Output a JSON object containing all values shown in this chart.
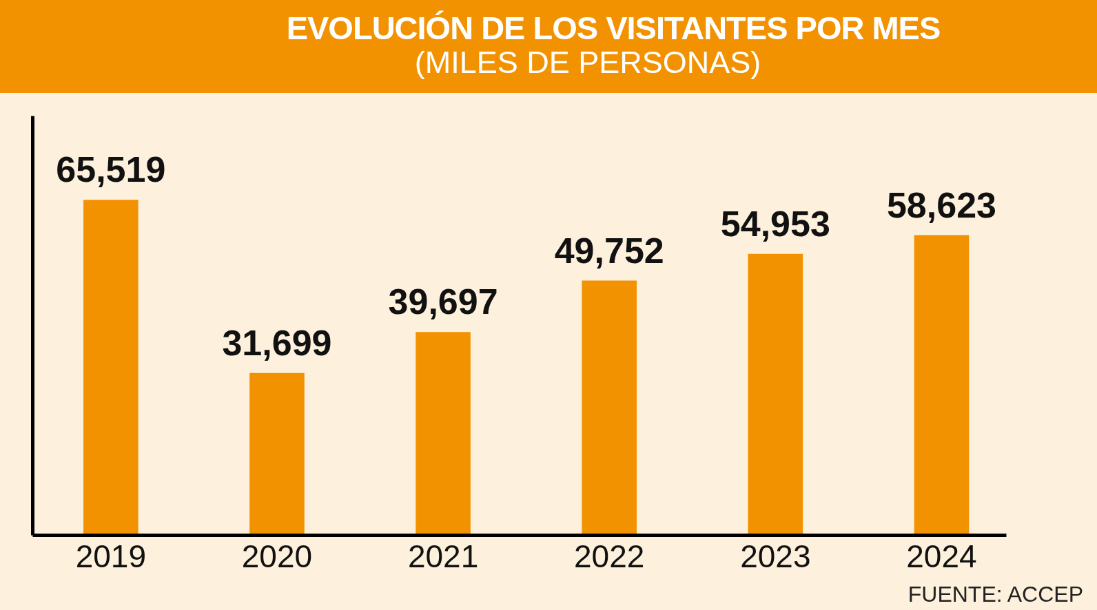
{
  "chart_data": {
    "type": "bar",
    "title": "EVOLUCIÓN DE LOS VISITANTES POR MES",
    "subtitle": "(MILES DE PERSONAS)",
    "categories": [
      "2019",
      "2020",
      "2021",
      "2022",
      "2023",
      "2024"
    ],
    "values": [
      65519,
      31699,
      39697,
      49752,
      54953,
      58623
    ],
    "value_labels": [
      "65,519",
      "31,699",
      "39,697",
      "49,752",
      "54,953",
      "58,623"
    ],
    "color": "#f29200",
    "grid": false,
    "annotations": [
      "FUENTE: ACCEP"
    ]
  }
}
